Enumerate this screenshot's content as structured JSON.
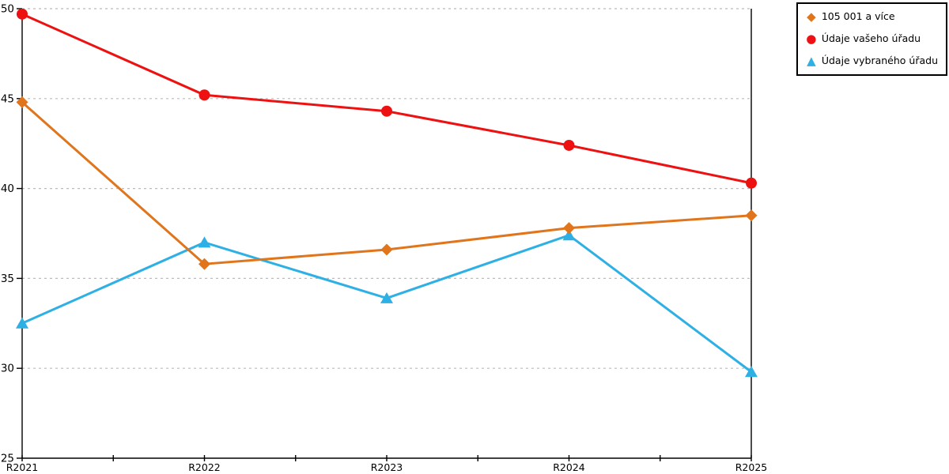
{
  "chart_data": {
    "type": "line",
    "title": "",
    "xlabel": "",
    "ylabel": "",
    "categories": [
      "R2021",
      "R2022",
      "R2023",
      "R2024",
      "R2025"
    ],
    "series": [
      {
        "name": "105 001 a více",
        "marker": "diamond",
        "color": "#e0751c",
        "values": [
          44.8,
          35.8,
          36.6,
          37.8,
          38.5
        ]
      },
      {
        "name": "Údaje vašeho úřadu",
        "marker": "circle",
        "color": "#ee1111",
        "values": [
          49.7,
          45.2,
          44.3,
          42.4,
          40.3
        ]
      },
      {
        "name": "Údaje vybraného úřadu",
        "marker": "triangle",
        "color": "#2fb0e5",
        "values": [
          32.5,
          37.0,
          33.9,
          37.4,
          29.8
        ]
      }
    ],
    "ylim": [
      25,
      50
    ],
    "yticks": [
      25,
      30,
      35,
      40,
      45,
      50
    ],
    "grid": "horizontal-dashed",
    "legend_position": "top-right"
  },
  "colors": {
    "axis": "#000000",
    "gridline": "#bbbbbb",
    "background": "#ffffff",
    "legend_border": "#000000"
  }
}
